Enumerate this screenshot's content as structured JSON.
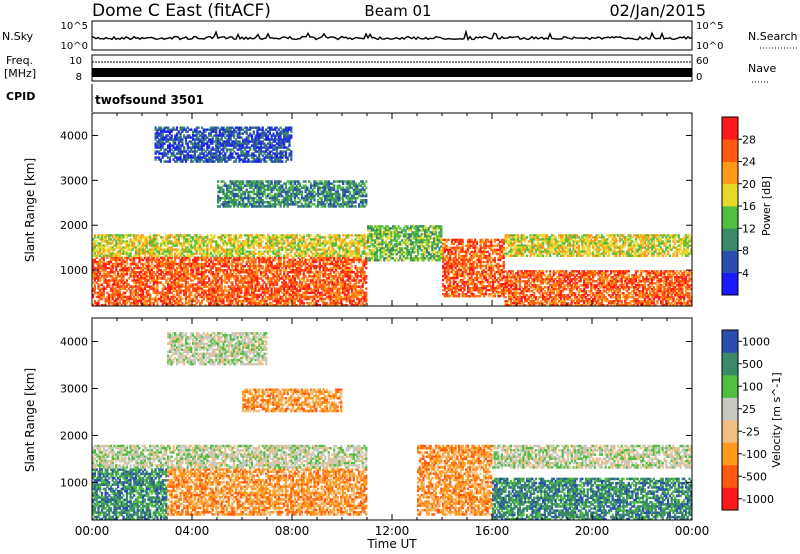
{
  "header": {
    "station": "Dome C East (fitACF)",
    "beam": "Beam 01",
    "date": "02/Jan/2015"
  },
  "panels": {
    "nsky_label": "N.Sky",
    "nsearch_label": "N.Search",
    "freq_label": "Freq.",
    "freq_unit": "[MHz]",
    "nave_label": "Nave",
    "cpid_label": "CPID",
    "cpid_text": "twofsound 3501",
    "noise_tick_top": "10^5",
    "noise_tick_bottom": "10^0",
    "freq_tick_top": "10",
    "freq_tick_bottom": "8",
    "nave_tick_top": "60",
    "nave_tick_bottom": "0"
  },
  "colors": {
    "power": [
      "#1a1aff",
      "#2a4fb0",
      "#3a8a6a",
      "#4fbf3f",
      "#e8d82a",
      "#ff9a1a",
      "#ff5a10",
      "#ff1a1a"
    ],
    "velocity": [
      "#ff1a1a",
      "#ff5a10",
      "#ff9a1a",
      "#f0c080",
      "#c8c8c0",
      "#4fbf3f",
      "#3a8a6a",
      "#2a4fb0"
    ]
  },
  "chart_data": [
    {
      "type": "heatmap",
      "quantity": "power",
      "ylabel": "Slant Range [km]",
      "xlabel": "Time UT",
      "x_ticks": [
        "00:00",
        "04:00",
        "08:00",
        "12:00",
        "16:00",
        "20:00",
        "00:00"
      ],
      "y_ticks": [
        1000,
        2000,
        3000,
        4000
      ],
      "ylim": [
        200,
        4500
      ],
      "xlim_hours": [
        0,
        24
      ],
      "colorbar_label": "Power [dB]",
      "colorbar_ticks": [
        "4",
        "8",
        "12",
        "16",
        "20",
        "24",
        "28"
      ],
      "colorbar_range": [
        0,
        32
      ],
      "bands": [
        {
          "t0": 0.0,
          "t1": 11.0,
          "r0": 200,
          "r1": 1300,
          "v": 27
        },
        {
          "t0": 0.0,
          "t1": 11.0,
          "r0": 1300,
          "r1": 1800,
          "v": 20
        },
        {
          "t0": 14.0,
          "t1": 16.5,
          "r0": 400,
          "r1": 1700,
          "v": 27
        },
        {
          "t0": 16.5,
          "t1": 24.0,
          "r0": 200,
          "r1": 1000,
          "v": 26
        },
        {
          "t0": 16.5,
          "t1": 24.0,
          "r0": 1300,
          "r1": 1800,
          "v": 18
        },
        {
          "t0": 11.0,
          "t1": 14.0,
          "r0": 1200,
          "r1": 2000,
          "v": 14
        },
        {
          "t0": 5.0,
          "t1": 11.0,
          "r0": 2400,
          "r1": 3000,
          "v": 12
        },
        {
          "t0": 2.5,
          "t1": 8.0,
          "r0": 3400,
          "r1": 4200,
          "v": 6
        }
      ]
    },
    {
      "type": "heatmap",
      "quantity": "velocity",
      "ylabel": "Slant Range [km]",
      "xlabel": "Time UT",
      "x_ticks": [
        "00:00",
        "04:00",
        "08:00",
        "12:00",
        "16:00",
        "20:00",
        "00:00"
      ],
      "y_ticks": [
        1000,
        2000,
        3000,
        4000
      ],
      "ylim": [
        200,
        4500
      ],
      "xlim_hours": [
        0,
        24
      ],
      "colorbar_label": "Velocity [m s^-1]",
      "colorbar_ticks": [
        "1000",
        "500",
        "100",
        "25",
        "-25",
        "-100",
        "-500",
        "-1000"
      ],
      "bands": [
        {
          "t0": 0.0,
          "t1": 3.0,
          "r0": 200,
          "r1": 1300,
          "v": 6
        },
        {
          "t0": 3.0,
          "t1": 11.0,
          "r0": 300,
          "r1": 1300,
          "v": 2
        },
        {
          "t0": 0.0,
          "t1": 11.0,
          "r0": 1300,
          "r1": 1800,
          "v": 4
        },
        {
          "t0": 13.0,
          "t1": 16.0,
          "r0": 300,
          "r1": 1800,
          "v": 2
        },
        {
          "t0": 16.0,
          "t1": 24.0,
          "r0": 200,
          "r1": 1100,
          "v": 6
        },
        {
          "t0": 16.0,
          "t1": 24.0,
          "r0": 1300,
          "r1": 1800,
          "v": 4
        },
        {
          "t0": 6.0,
          "t1": 10.0,
          "r0": 2500,
          "r1": 3000,
          "v": 2
        },
        {
          "t0": 3.0,
          "t1": 7.0,
          "r0": 3500,
          "r1": 4200,
          "v": 4
        }
      ]
    }
  ]
}
